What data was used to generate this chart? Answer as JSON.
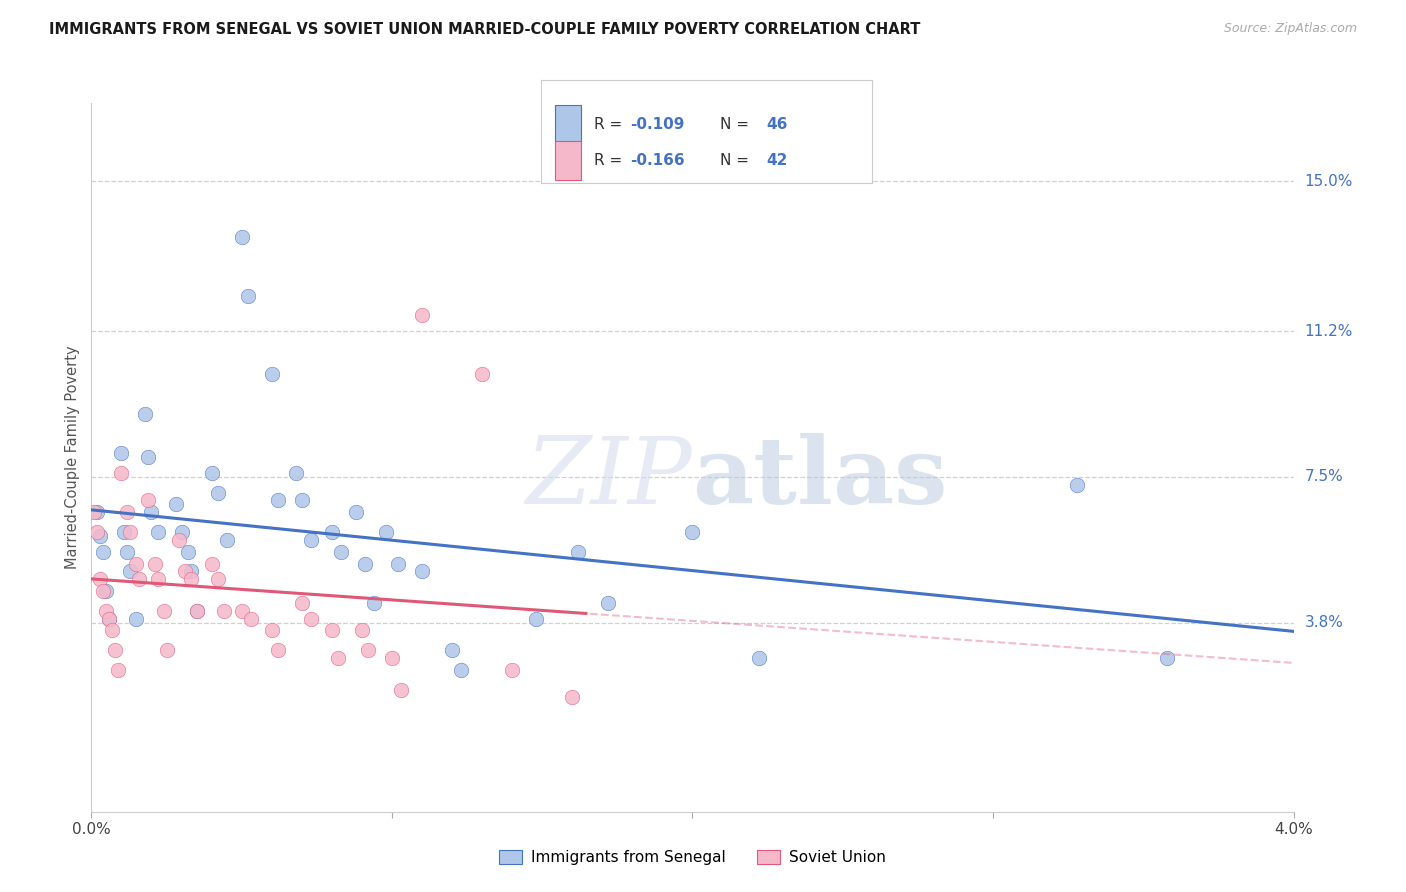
{
  "title": "IMMIGRANTS FROM SENEGAL VS SOVIET UNION MARRIED-COUPLE FAMILY POVERTY CORRELATION CHART",
  "source": "Source: ZipAtlas.com",
  "ylabel": "Married-Couple Family Poverty",
  "ytick_labels": [
    "15.0%",
    "11.2%",
    "7.5%",
    "3.8%"
  ],
  "ytick_values": [
    0.15,
    0.112,
    0.075,
    0.038
  ],
  "xlim": [
    0.0,
    0.04
  ],
  "ylim": [
    -0.01,
    0.17
  ],
  "color_senegal_fill": "#aec6e8",
  "color_soviet_fill": "#f5b8ca",
  "color_senegal_line": "#4472c4",
  "color_soviet_line": "#e05878",
  "senegal_x": [
    0.0002,
    0.0003,
    0.0004,
    0.0005,
    0.0006,
    0.001,
    0.0011,
    0.0012,
    0.0013,
    0.0015,
    0.0018,
    0.0019,
    0.002,
    0.0022,
    0.0028,
    0.003,
    0.0032,
    0.0033,
    0.0035,
    0.004,
    0.0042,
    0.0045,
    0.005,
    0.0052,
    0.006,
    0.0062,
    0.0068,
    0.007,
    0.0073,
    0.008,
    0.0083,
    0.0088,
    0.0091,
    0.0094,
    0.0098,
    0.0102,
    0.011,
    0.012,
    0.0123,
    0.0148,
    0.0162,
    0.0172,
    0.02,
    0.0222,
    0.0328,
    0.0358
  ],
  "senegal_y": [
    0.066,
    0.06,
    0.056,
    0.046,
    0.039,
    0.081,
    0.061,
    0.056,
    0.051,
    0.039,
    0.091,
    0.08,
    0.066,
    0.061,
    0.068,
    0.061,
    0.056,
    0.051,
    0.041,
    0.076,
    0.071,
    0.059,
    0.136,
    0.121,
    0.101,
    0.069,
    0.076,
    0.069,
    0.059,
    0.061,
    0.056,
    0.066,
    0.053,
    0.043,
    0.061,
    0.053,
    0.051,
    0.031,
    0.026,
    0.039,
    0.056,
    0.043,
    0.061,
    0.029,
    0.073,
    0.029
  ],
  "soviet_x": [
    0.0001,
    0.0002,
    0.0003,
    0.0004,
    0.0005,
    0.0006,
    0.0007,
    0.0008,
    0.0009,
    0.001,
    0.0012,
    0.0013,
    0.0015,
    0.0016,
    0.0019,
    0.0021,
    0.0022,
    0.0024,
    0.0025,
    0.0029,
    0.0031,
    0.0033,
    0.0035,
    0.004,
    0.0042,
    0.0044,
    0.005,
    0.0053,
    0.006,
    0.0062,
    0.007,
    0.0073,
    0.008,
    0.0082,
    0.009,
    0.0092,
    0.01,
    0.0103,
    0.011,
    0.013,
    0.014,
    0.016
  ],
  "soviet_y": [
    0.066,
    0.061,
    0.049,
    0.046,
    0.041,
    0.039,
    0.036,
    0.031,
    0.026,
    0.076,
    0.066,
    0.061,
    0.053,
    0.049,
    0.069,
    0.053,
    0.049,
    0.041,
    0.031,
    0.059,
    0.051,
    0.049,
    0.041,
    0.053,
    0.049,
    0.041,
    0.041,
    0.039,
    0.036,
    0.031,
    0.043,
    0.039,
    0.036,
    0.029,
    0.036,
    0.031,
    0.029,
    0.021,
    0.116,
    0.101,
    0.026,
    0.019
  ]
}
